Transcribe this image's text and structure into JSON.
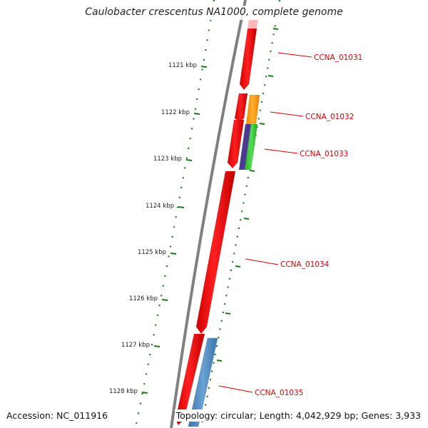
{
  "title": "Caulobacter crescentus NA1000, complete genome",
  "footer": {
    "accession": "Accession: NC_011916",
    "summary": "Topology: circular; Length: 4,042,929 bp; Genes: 3,933"
  },
  "colors": {
    "backbone": "#808080",
    "tick": "#1a7a1a",
    "label": "#d40000",
    "gene_red": "#ff0000",
    "gene_orange": "#ff9900",
    "gene_green": "#33cc33",
    "gene_purple": "#4b3a8f",
    "gene_blue": "#4a86c0"
  },
  "ticks": [
    "1121 kbp",
    "1122 kbp",
    "1123 kbp",
    "1124 kbp",
    "1125 kbp",
    "1126 kbp",
    "1127 kbp",
    "1128 kbp"
  ],
  "genes": [
    {
      "label": "CCNA_01031"
    },
    {
      "label": "CCNA_01032"
    },
    {
      "label": "CCNA_01033"
    },
    {
      "label": "CCNA_01034"
    },
    {
      "label": "CCNA_01035"
    }
  ]
}
